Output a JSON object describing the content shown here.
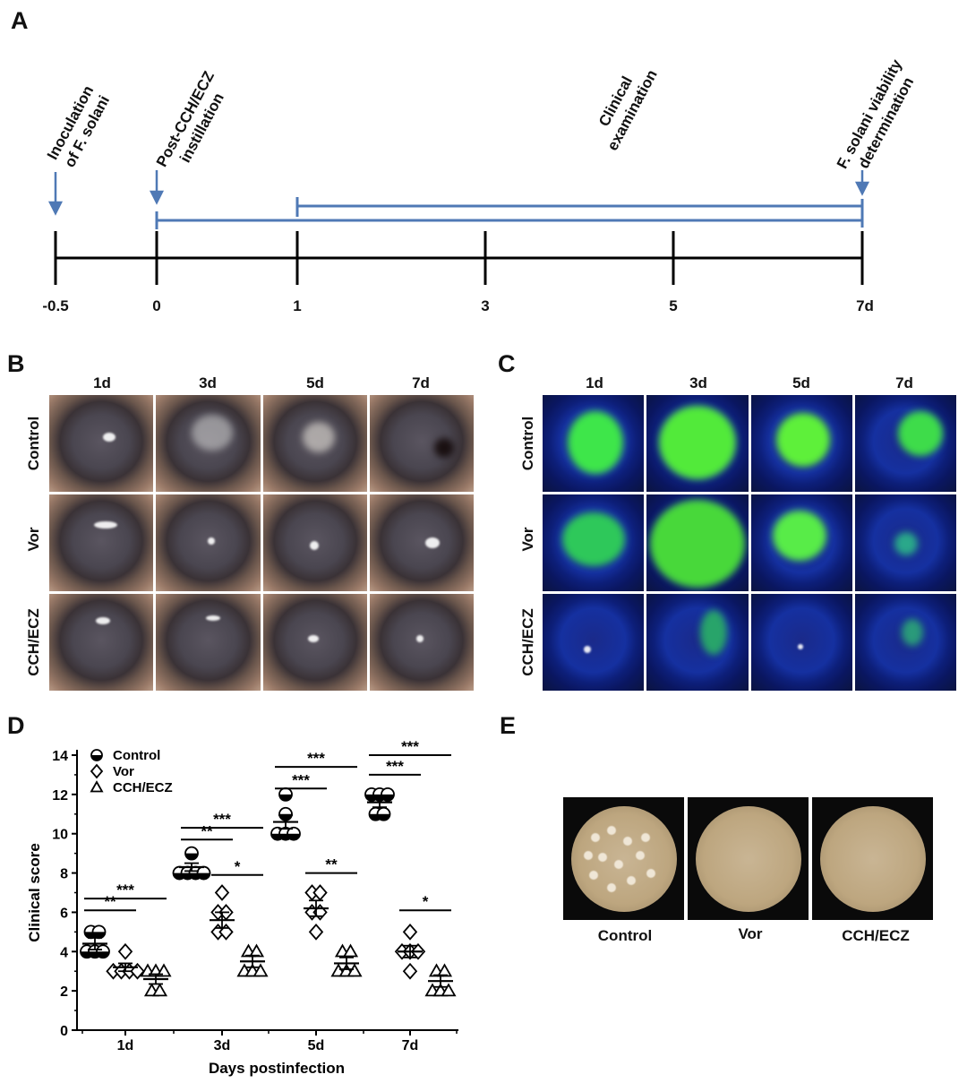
{
  "panel_a": {
    "letter": "A",
    "timeline_labels": [
      "-0.5",
      "0",
      "1",
      "3",
      "5",
      "7d"
    ],
    "events": [
      {
        "lines": [
          "Inoculation",
          "of F. solani"
        ]
      },
      {
        "lines": [
          "Post-CCH/ECZ",
          "instillation"
        ]
      },
      {
        "lines": [
          "Clinical",
          "examination"
        ]
      },
      {
        "lines": [
          "F. solani viability",
          "determination"
        ]
      }
    ],
    "timeline_color": "#000000",
    "bracket_color": "#4f79b5"
  },
  "panel_b": {
    "letter": "B",
    "columns": [
      "1d",
      "3d",
      "5d",
      "7d"
    ],
    "rows": [
      "Control",
      "Vor",
      "CCH/ECZ"
    ]
  },
  "panel_c": {
    "letter": "C",
    "columns": [
      "1d",
      "3d",
      "5d",
      "7d"
    ],
    "rows": [
      "Control",
      "Vor",
      "CCH/ECZ"
    ]
  },
  "panel_d": {
    "letter": "D",
    "chart_data": {
      "type": "scatter",
      "xlabel": "Days postinfection",
      "ylabel": "Clinical score",
      "ylim": [
        0,
        14
      ],
      "yticks": [
        "0",
        "2",
        "4",
        "6",
        "8",
        "10",
        "12",
        "14"
      ],
      "categories": [
        "1d",
        "3d",
        "5d",
        "7d"
      ],
      "legend_position": "top-left",
      "series": [
        {
          "name": "Control",
          "marker": "half-filled-circle",
          "mean": [
            4.4,
            8.3,
            10.6,
            11.6
          ],
          "sem": [
            0.3,
            0.2,
            0.35,
            0.25
          ],
          "points": [
            [
              5,
              5,
              4,
              4,
              4
            ],
            [
              9,
              8,
              8,
              8,
              8
            ],
            [
              12,
              11,
              10,
              10,
              10
            ],
            [
              12,
              12,
              12,
              11,
              11
            ]
          ]
        },
        {
          "name": "Vor",
          "marker": "open-diamond",
          "mean": [
            3.2,
            5.6,
            6.2,
            4.0
          ],
          "sem": [
            0.2,
            0.4,
            0.4,
            0.3
          ],
          "points": [
            [
              4,
              3,
              3,
              3,
              3
            ],
            [
              7,
              6,
              6,
              5,
              5
            ],
            [
              7,
              7,
              6,
              6,
              5
            ],
            [
              5,
              4,
              4,
              4,
              3
            ]
          ]
        },
        {
          "name": "CCH/ECZ",
          "marker": "open-triangle",
          "mean": [
            2.6,
            3.5,
            3.4,
            2.5
          ],
          "sem": [
            0.25,
            0.3,
            0.3,
            0.3
          ],
          "points": [
            [
              3,
              3,
              3,
              2,
              2
            ],
            [
              4,
              4,
              3,
              3,
              3
            ],
            [
              4,
              4,
              3,
              3,
              3
            ],
            [
              3,
              3,
              2,
              2,
              2
            ]
          ]
        }
      ],
      "significance": [
        {
          "group": 0,
          "label": "**",
          "from": 0,
          "to": 1,
          "y": 6.1
        },
        {
          "group": 0,
          "label": "***",
          "from": 0,
          "to": 2,
          "y": 6.7
        },
        {
          "group": 1,
          "label": "**",
          "from": 0,
          "to": 1,
          "y": 9.7
        },
        {
          "group": 1,
          "label": "***",
          "from": 0,
          "to": 2,
          "y": 10.3
        },
        {
          "group": 1,
          "label": "*",
          "from": 1,
          "to": 2,
          "y": 7.9
        },
        {
          "group": 2,
          "label": "***",
          "from": 0,
          "to": 1,
          "y": 12.3
        },
        {
          "group": 2,
          "label": "***",
          "from": 0,
          "to": 2,
          "y": 13.4
        },
        {
          "group": 2,
          "label": "**",
          "from": 1,
          "to": 2,
          "y": 8.0
        },
        {
          "group": 3,
          "label": "***",
          "from": 0,
          "to": 1,
          "y": 13.0
        },
        {
          "group": 3,
          "label": "***",
          "from": 0,
          "to": 2,
          "y": 14.0
        },
        {
          "group": 3,
          "label": "*",
          "from": 1,
          "to": 2,
          "y": 6.1
        }
      ]
    }
  },
  "panel_e": {
    "letter": "E",
    "plates": [
      "Control",
      "Vor",
      "CCH/ECZ"
    ]
  }
}
